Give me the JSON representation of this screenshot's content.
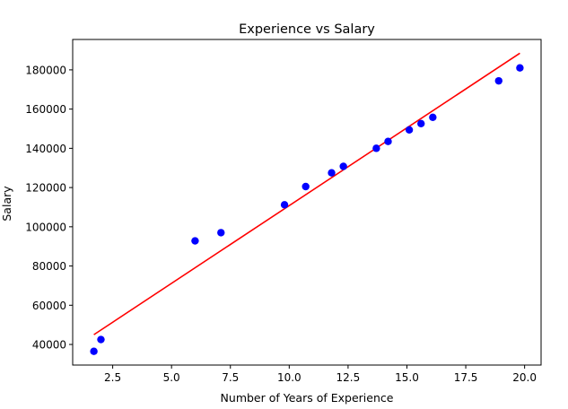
{
  "chart_data": {
    "type": "scatter",
    "title": "Experience vs Salary",
    "xlabel": "Number of Years of Experience",
    "ylabel": "Salary",
    "xlim": [
      0.8,
      20.7
    ],
    "ylim": [
      29500,
      195500
    ],
    "xticks": [
      2.5,
      5.0,
      7.5,
      10.0,
      12.5,
      15.0,
      17.5,
      20.0
    ],
    "xtick_labels": [
      "2.5",
      "5.0",
      "7.5",
      "10.0",
      "12.5",
      "15.0",
      "17.5",
      "20.0"
    ],
    "yticks": [
      40000,
      60000,
      80000,
      100000,
      120000,
      140000,
      160000,
      180000
    ],
    "ytick_labels": [
      "40000",
      "60000",
      "80000",
      "100000",
      "120000",
      "140000",
      "160000",
      "180000"
    ],
    "grid": false,
    "legend": "none",
    "series": [
      {
        "kind": "points",
        "color": "#0000ff",
        "marker": "circle",
        "x": [
          1.7,
          2.0,
          6.0,
          7.1,
          9.8,
          10.7,
          11.8,
          12.3,
          13.7,
          14.2,
          15.1,
          15.6,
          16.1,
          18.9,
          19.8
        ],
        "y": [
          36500,
          42500,
          92800,
          97000,
          111200,
          120500,
          127500,
          130800,
          140000,
          143500,
          149400,
          152600,
          155800,
          174400,
          181000
        ]
      },
      {
        "kind": "regression-line",
        "color": "#ff0000",
        "x": [
          1.7,
          19.8
        ],
        "y": [
          45000,
          188500
        ]
      }
    ]
  }
}
